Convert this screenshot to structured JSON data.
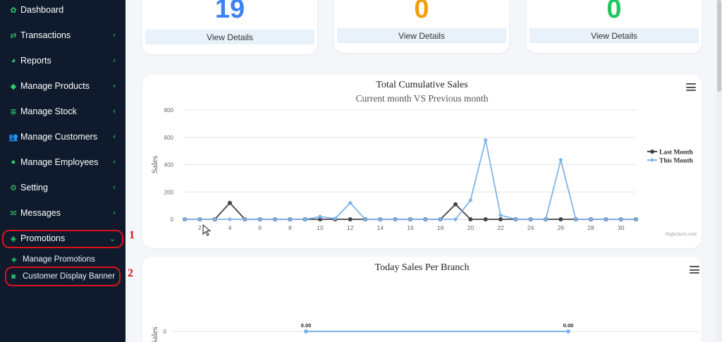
{
  "sidebar": {
    "items": [
      {
        "label": "Dashboard",
        "icon": "palette-icon",
        "glyph": "✿",
        "chevron": ""
      },
      {
        "label": "Transactions",
        "icon": "exchange-icon",
        "glyph": "⇄",
        "chevron": "‹"
      },
      {
        "label": "Reports",
        "icon": "pie-chart-icon",
        "glyph": "◕",
        "chevron": "‹"
      },
      {
        "label": "Manage Products",
        "icon": "cube-icon",
        "glyph": "◆",
        "chevron": "‹"
      },
      {
        "label": "Manage Stock",
        "icon": "database-icon",
        "glyph": "≣",
        "chevron": "‹"
      },
      {
        "label": "Manage Customers",
        "icon": "users-icon",
        "glyph": "👥",
        "chevron": "‹"
      },
      {
        "label": "Manage Employees",
        "icon": "user-icon",
        "glyph": "●",
        "chevron": "‹"
      },
      {
        "label": "Setting",
        "icon": "cogs-icon",
        "glyph": "⚙",
        "chevron": "‹"
      },
      {
        "label": "Messages",
        "icon": "envelope-icon",
        "glyph": "✉",
        "chevron": "‹"
      },
      {
        "label": "Promotions",
        "icon": "tag-icon",
        "glyph": "◈",
        "chevron": "⌄"
      }
    ],
    "sub_items": [
      {
        "label": "Manage Promotions",
        "icon": "tag-icon",
        "glyph": "◈"
      },
      {
        "label": "Customer Display Banner",
        "icon": "camera-icon",
        "glyph": "◙"
      }
    ]
  },
  "annotations": {
    "marker_1": "1",
    "marker_2": "2",
    "color": "#e0101a"
  },
  "stats": [
    {
      "value": "19",
      "color": "#3b82f6",
      "link": "View Details"
    },
    {
      "value": "0",
      "color": "#f59e0b",
      "link": "View Details"
    },
    {
      "value": "0",
      "color": "#22c55e",
      "link": "View Details"
    }
  ],
  "chart_data": [
    {
      "type": "line",
      "title": "Total Cumulative Sales",
      "subtitle": "Current month VS Previous month",
      "ylabel": "Sales",
      "xlabel": "",
      "ylim": [
        0,
        800
      ],
      "yticks": [
        "0",
        "200",
        "400",
        "600",
        "800"
      ],
      "xticks": [
        "2",
        "4",
        "6",
        "8",
        "10",
        "12",
        "14",
        "16",
        "18",
        "20",
        "22",
        "24",
        "26",
        "28",
        "30"
      ],
      "x": [
        1,
        2,
        3,
        4,
        5,
        6,
        7,
        8,
        9,
        10,
        11,
        12,
        13,
        14,
        15,
        16,
        17,
        18,
        19,
        20,
        21,
        22,
        23,
        24,
        25,
        26,
        27,
        28,
        29,
        30,
        31
      ],
      "legend_position": "right",
      "credit": "Highcharts.com",
      "grid": true,
      "series": [
        {
          "name": "Last Month",
          "color": "#434348",
          "values": [
            0,
            0,
            0,
            120,
            0,
            0,
            0,
            0,
            0,
            0,
            0,
            0,
            0,
            0,
            0,
            0,
            0,
            0,
            110,
            0,
            0,
            0,
            0,
            0,
            0,
            0,
            0,
            0,
            0,
            0,
            0
          ]
        },
        {
          "name": "This Month",
          "color": "#7cb5ec",
          "values": [
            0,
            0,
            0,
            0,
            0,
            0,
            0,
            0,
            0,
            20,
            5,
            120,
            0,
            0,
            0,
            0,
            0,
            0,
            0,
            140,
            580,
            30,
            0,
            0,
            0,
            435,
            0,
            0,
            0,
            0,
            0
          ]
        }
      ]
    },
    {
      "type": "line",
      "title": "Today Sales Per Branch",
      "ylabel": "Sales",
      "yticks": [
        "0"
      ],
      "data_labels": [
        "0.00",
        "0.00"
      ],
      "values": [
        0,
        0
      ],
      "series": [
        {
          "color": "#7cb5ec",
          "values": [
            0,
            0
          ]
        }
      ]
    }
  ]
}
